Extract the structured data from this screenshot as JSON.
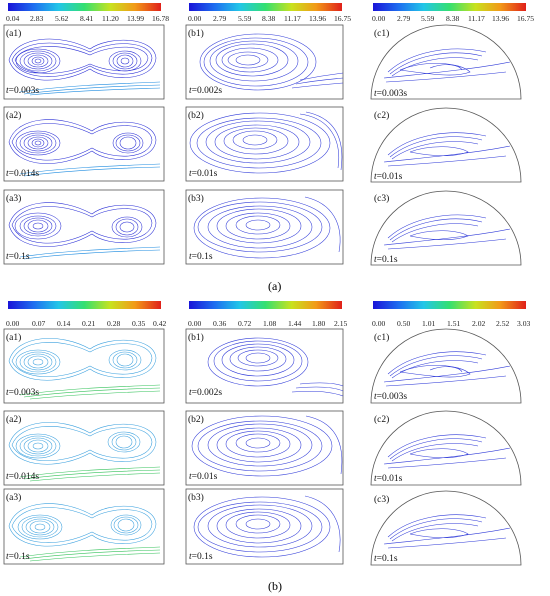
{
  "sections": [
    {
      "caption": "(a)",
      "colorbars": [
        {
          "ticks": [
            "0.04",
            "2.83",
            "5.62",
            "8.41",
            "11.20",
            "13.99",
            "16.78"
          ]
        },
        {
          "ticks": [
            "0.00",
            "2.79",
            "5.59",
            "8.38",
            "11.17",
            "13.96",
            "16.75"
          ]
        },
        {
          "ticks": [
            "0.00",
            "2.79",
            "5.59",
            "8.38",
            "11.17",
            "13.96",
            "16.75"
          ]
        }
      ],
      "panels": [
        [
          {
            "label": "(a1)",
            "time": "=0.003s"
          },
          {
            "label": "(a2)",
            "time": "=0.014s"
          },
          {
            "label": "(a3)",
            "time": "=0.1s"
          }
        ],
        [
          {
            "label": "(b1)",
            "time": "=0.002s"
          },
          {
            "label": "(b2)",
            "time": "=0.01s"
          },
          {
            "label": "(b3)",
            "time": "=0.1s"
          }
        ],
        [
          {
            "label": "(c1)",
            "time": "=0.003s"
          },
          {
            "label": "(c2)",
            "time": "=0.01s"
          },
          {
            "label": "(c3)",
            "time": "=0.1s"
          }
        ]
      ]
    },
    {
      "caption": "(b)",
      "colorbars": [
        {
          "ticks": [
            "0.00",
            "0.07",
            "0.14",
            "0.21",
            "0.28",
            "0.35",
            "0.42"
          ]
        },
        {
          "ticks": [
            "0.00",
            "0.36",
            "0.72",
            "1.08",
            "1.44",
            "1.80",
            "2.15"
          ]
        },
        {
          "ticks": [
            "0.00",
            "0.50",
            "1.01",
            "1.51",
            "2.02",
            "2.52",
            "3.03"
          ]
        }
      ],
      "panels": [
        [
          {
            "label": "(a1)",
            "time": "=0.003s"
          },
          {
            "label": "(a2)",
            "time": "=0.014s"
          },
          {
            "label": "(a3)",
            "time": "=0.1s"
          }
        ],
        [
          {
            "label": "(b1)",
            "time": "=0.002s"
          },
          {
            "label": "(b2)",
            "time": "=0.01s"
          },
          {
            "label": "(b3)",
            "time": "=0.1s"
          }
        ],
        [
          {
            "label": "(c1)",
            "time": "=0.003s"
          },
          {
            "label": "(c2)",
            "time": "=0.01s"
          },
          {
            "label": "(c3)",
            "time": "=0.1s"
          }
        ]
      ]
    }
  ],
  "time_symbol": "t",
  "colormap": [
    "#1a14d8",
    "#1e6ff0",
    "#22c6e8",
    "#34e070",
    "#c8e21e",
    "#f29a18",
    "#e0201a"
  ],
  "streamline_colors": {
    "a_col_a": "#2a2fd6",
    "a_col_b": "#2a2fd6",
    "a_col_c": "#2a2fd6",
    "b_col_a_vortex": "#3aa0de",
    "b_col_a_jet": "#34c25a",
    "b_col_b": "#2f3ad8",
    "b_col_c": "#2f3ad8",
    "jet_a": "#1e8ce0"
  }
}
